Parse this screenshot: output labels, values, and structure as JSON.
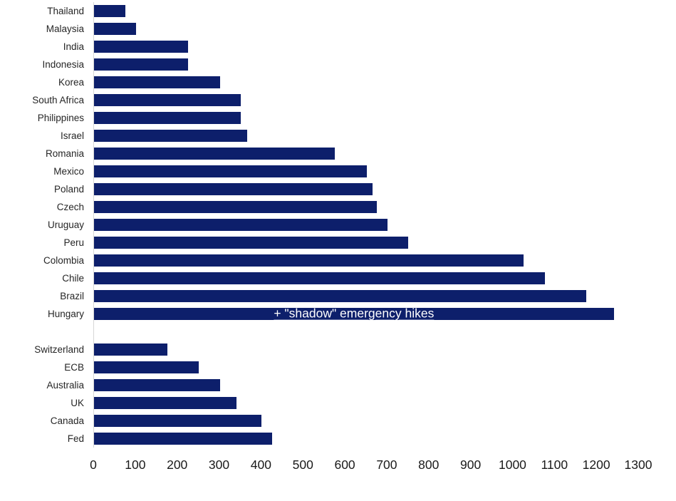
{
  "chart_data": {
    "type": "bar",
    "orientation": "horizontal",
    "title": "",
    "xlabel": "",
    "ylabel": "",
    "xlim": [
      0,
      1300
    ],
    "xticks": [
      0,
      100,
      200,
      300,
      400,
      500,
      600,
      700,
      800,
      900,
      1000,
      1100,
      1200,
      1300
    ],
    "grid": false,
    "bar_color": "#0d1f6b",
    "axis_line_color": "#d6d6d6",
    "groups": [
      {
        "name": "emerging-markets",
        "categories": [
          "Thailand",
          "Malaysia",
          "India",
          "Indonesia",
          "Korea",
          "South Africa",
          "Philippines",
          "Israel",
          "Romania",
          "Mexico",
          "Poland",
          "Czech",
          "Uruguay",
          "Peru",
          "Colombia",
          "Chile",
          "Brazil",
          "Hungary"
        ],
        "values": [
          75,
          100,
          225,
          225,
          300,
          350,
          350,
          365,
          575,
          650,
          665,
          675,
          700,
          750,
          1025,
          1075,
          1175,
          1240
        ]
      },
      {
        "name": "developed-markets",
        "categories": [
          "Switzerland",
          "ECB",
          "Australia",
          "UK",
          "Canada",
          "Fed"
        ],
        "values": [
          175,
          250,
          300,
          340,
          400,
          425
        ]
      }
    ],
    "annotation": {
      "text": "+ \"shadow\" emergency hikes",
      "target_category": "Hungary",
      "color": "#ffffff"
    }
  }
}
